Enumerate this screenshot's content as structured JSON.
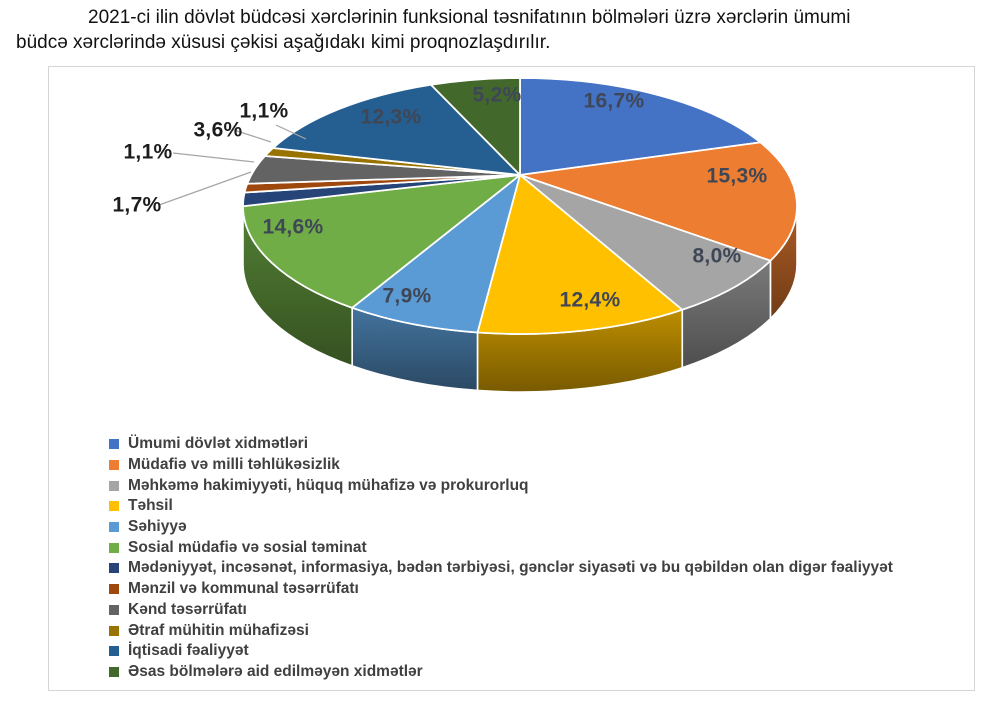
{
  "caption": {
    "line1": "2021-ci ilin dövlət büdcəsi xərclərinin funksional təsnifatının bölmələri üzrə xərclərin ümumi",
    "line2": "büdcə xərclərində xüsusi çəkisi aşağıdakı kimi proqnozlaşdırılır."
  },
  "chart_data": {
    "type": "pie",
    "style": "3d",
    "start_angle_deg": 0,
    "direction": "clockwise",
    "legend_position": "bottom-left",
    "data_labels": "percent",
    "slices": [
      {
        "label": "Ümumi dövlət xidmətləri",
        "value": 16.7,
        "display": "16,7%",
        "color": "#4472C4"
      },
      {
        "label": "Müdafiə və milli təhlükəsizlik",
        "value": 15.3,
        "display": "15,3%",
        "color": "#ED7D31"
      },
      {
        "label": "Məhkəmə hakimiyyəti, hüquq mühafizə və prokurorluq",
        "value": 8.0,
        "display": "8,0%",
        "color": "#A5A5A5"
      },
      {
        "label": "Təhsil",
        "value": 12.4,
        "display": "12,4%",
        "color": "#FFC000"
      },
      {
        "label": "Səhiyyə",
        "value": 7.9,
        "display": "7,9%",
        "color": "#5B9BD5"
      },
      {
        "label": "Sosial müdafiə və sosial təminat",
        "value": 14.6,
        "display": "14,6%",
        "color": "#70AD47"
      },
      {
        "label": "Mədəniyyət, incəsənət, informasiya, bədən tərbiyəsi, gənclər siyasəti və bu qəbildən olan digər fəaliyyət",
        "value": 1.7,
        "display": "1,7%",
        "color": "#264478"
      },
      {
        "label": "Mənzil və kommunal təsərrüfatı",
        "value": 1.1,
        "display": "1,1%",
        "color": "#9E480E"
      },
      {
        "label": "Kənd təsərrüfatı",
        "value": 3.6,
        "display": "3,6%",
        "color": "#636363"
      },
      {
        "label": "Ətraf mühitin mühafizəsi",
        "value": 1.1,
        "display": "1,1%",
        "color": "#997300"
      },
      {
        "label": "İqtisadi fəaliyyət",
        "value": 12.3,
        "display": "12,3%",
        "color": "#255E91"
      },
      {
        "label": "Əsas bölmələrə aid edilməyən xidmətlər",
        "value": 5.2,
        "display": "5,2%",
        "color": "#43682B"
      }
    ]
  }
}
